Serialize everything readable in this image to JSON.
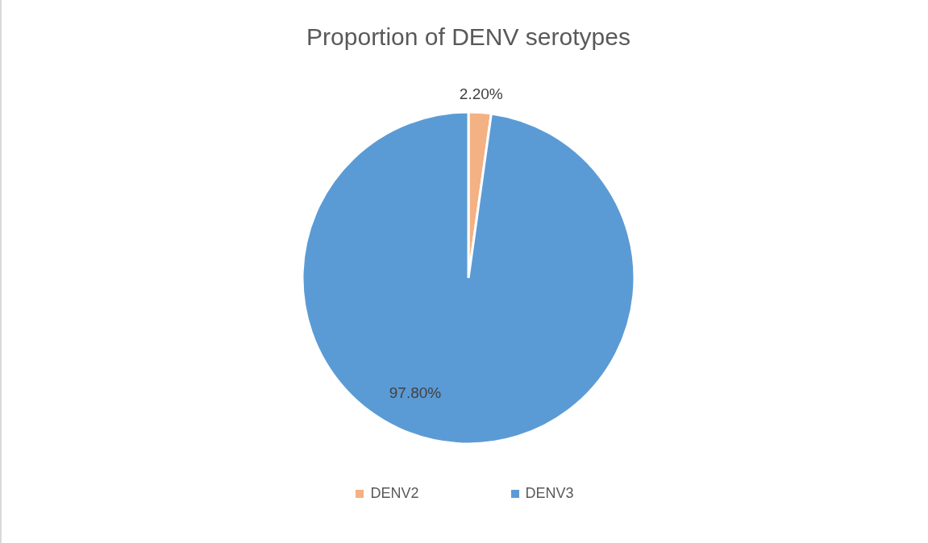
{
  "chart_data": {
    "type": "pie",
    "title": "Proportion of DENV serotypes",
    "categories": [
      "DENV2",
      "DENV3"
    ],
    "values": [
      2.2,
      97.8
    ],
    "colors": [
      "#f4b183",
      "#5b9bd5"
    ],
    "value_labels": [
      "2.20%",
      "97.80%"
    ],
    "legend": "bottom"
  }
}
